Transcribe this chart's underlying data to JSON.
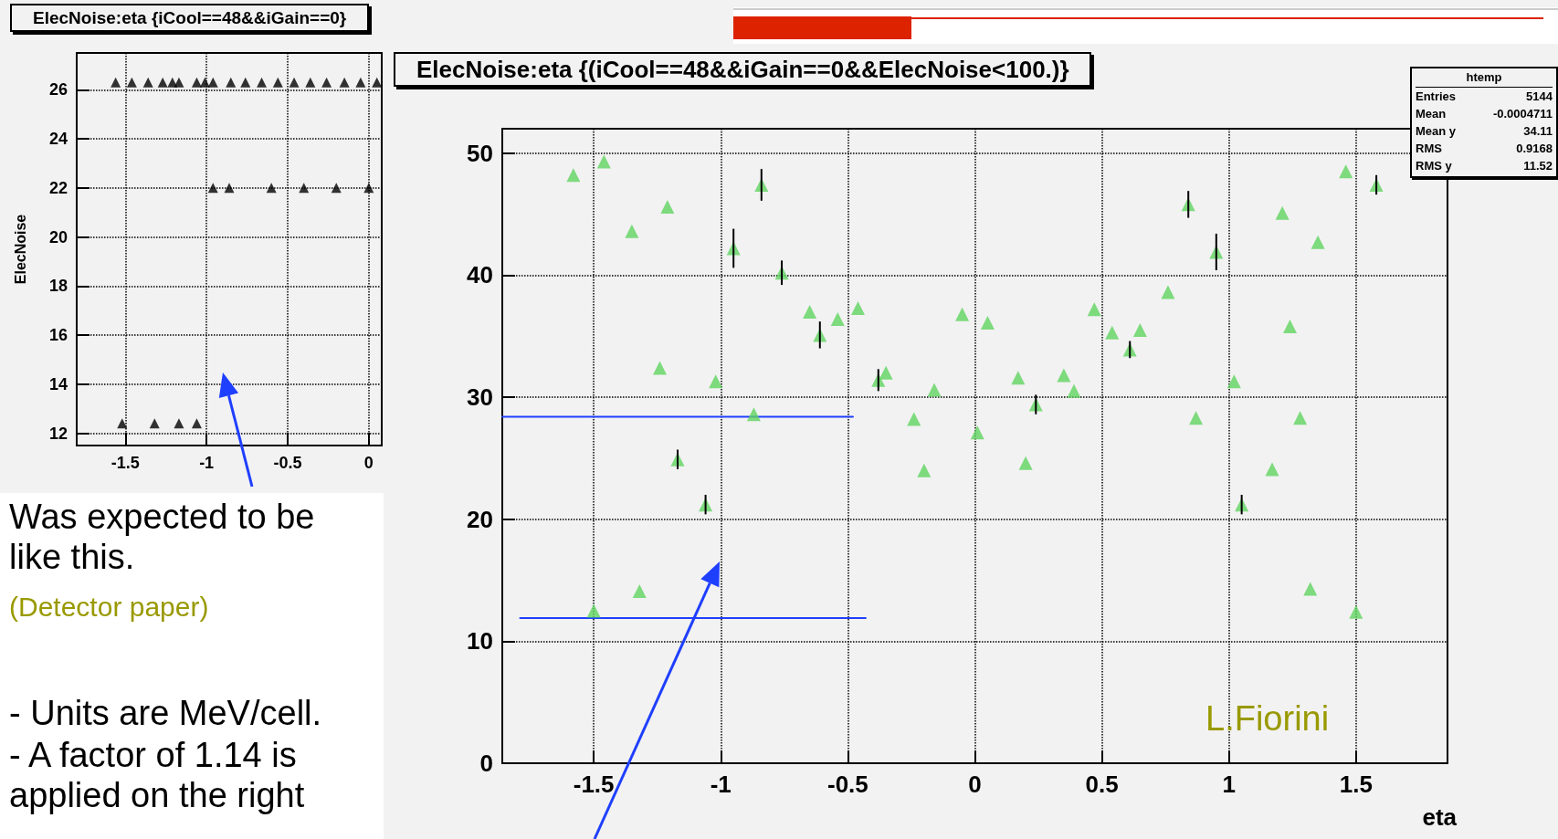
{
  "chart_data": [
    {
      "type": "scatter",
      "title": "ElecNoise:eta {iCool==48&&iGain==0}",
      "ylabel": "ElecNoise",
      "color": "#000000",
      "marker": "triangle",
      "x": [
        -1.56,
        -1.46,
        -1.36,
        -1.27,
        -1.21,
        -1.17,
        -1.06,
        -1.01,
        -0.96,
        -0.85,
        -0.76,
        -0.66,
        -0.56,
        -0.46,
        -0.36,
        -0.26,
        -0.15,
        -0.05,
        0.05,
        -0.96,
        -0.86,
        -0.6,
        -0.4,
        -0.2,
        0.0,
        -1.52,
        -1.32,
        -1.17,
        -1.06
      ],
      "values": [
        26.3,
        26.3,
        26.3,
        26.3,
        26.3,
        26.3,
        26.3,
        26.3,
        26.3,
        26.3,
        26.3,
        26.3,
        26.3,
        26.3,
        26.3,
        26.3,
        26.3,
        26.3,
        26.3,
        22,
        22,
        22,
        22,
        22,
        22,
        12.4,
        12.4,
        12.4,
        12.4
      ],
      "xlim": [
        -1.8,
        0.08
      ],
      "ylim": [
        11.5,
        27.5
      ],
      "xticks": [
        -1.5,
        -1,
        -0.5,
        0
      ],
      "yticks": [
        12,
        14,
        16,
        18,
        20,
        22,
        24,
        26
      ],
      "grid": true,
      "annotations": [
        "Was expected to be like this.",
        "(Detector paper)",
        "- Units are MeV/cell.",
        "- A factor of 1.14 is applied on the right"
      ]
    },
    {
      "type": "scatter",
      "title": "ElecNoise:eta {(iCool==48&&iGain==0&&ElecNoise<100.)}",
      "xlabel": "eta",
      "marker": "triangle",
      "series": [
        {
          "color": "#5fd35f",
          "x": [
            -1.58,
            -1.5,
            -1.46,
            -1.35,
            -1.32,
            -1.24,
            -1.21,
            -1.17,
            -1.06,
            -1.02,
            -0.95,
            -0.87,
            -0.84,
            -0.76,
            -0.65,
            -0.61,
            -0.54,
            -0.46,
            -0.38,
            -0.35,
            -0.24,
            -0.2,
            -0.16,
            -0.05,
            0.01,
            0.05,
            0.17,
            0.2,
            0.24,
            0.35,
            0.39,
            0.47,
            0.54,
            0.61,
            0.65,
            0.76,
            0.84,
            0.87,
            0.95,
            1.02,
            1.05,
            1.17,
            1.21,
            1.24,
            1.28,
            1.32,
            1.35,
            1.46,
            1.5,
            1.58
          ],
          "values": [
            48.2,
            12.5,
            49.3,
            43.6,
            14.1,
            32.4,
            45.6,
            24.9,
            21.2,
            31.3,
            42.2,
            28.6,
            47.4,
            40.2,
            37.0,
            35.1,
            36.4,
            37.3,
            31.4,
            32.0,
            28.2,
            24.0,
            30.6,
            36.8,
            27.1,
            36.1,
            31.6,
            24.6,
            29.4,
            31.8,
            30.5,
            37.2,
            35.3,
            33.9,
            35.5,
            38.6,
            45.8,
            28.3,
            41.9,
            31.3,
            21.2,
            24.1,
            45.1,
            35.8,
            28.3,
            14.3,
            42.7,
            48.5,
            12.4,
            47.4
          ],
          "errors": [
            null,
            null,
            null,
            null,
            null,
            null,
            null,
            0.8,
            0.8,
            null,
            1.6,
            null,
            1.3,
            1.0,
            null,
            1.1,
            null,
            null,
            0.9,
            null,
            null,
            null,
            null,
            null,
            null,
            null,
            null,
            null,
            0.8,
            null,
            null,
            null,
            null,
            0.7,
            null,
            null,
            1.1,
            null,
            1.5,
            null,
            0.8,
            null,
            null,
            null,
            null,
            null,
            null,
            null,
            null,
            0.8
          ]
        },
        {
          "type": "line",
          "color": "#1f3fff",
          "marker": "none",
          "x": [
            -1.86,
            -0.48
          ],
          "values": [
            28.4,
            28.4
          ]
        },
        {
          "type": "line",
          "color": "#1f3fff",
          "marker": "none",
          "x": [
            -1.79,
            -0.43
          ],
          "values": [
            11.9,
            11.9
          ]
        }
      ],
      "xlim": [
        -1.86,
        1.86
      ],
      "ylim": [
        0,
        52
      ],
      "xticks": [
        -1.5,
        -1,
        -0.5,
        0,
        0.5,
        1,
        1.5
      ],
      "yticks": [
        0,
        10,
        20,
        30,
        40,
        50
      ],
      "grid": true,
      "annotations": [
        "htemp",
        "Entries 5144",
        "Mean -0.0004711",
        "Mean y 34.11",
        "RMS 0.9168",
        "RMS y 11.52",
        "L.Fiorini"
      ]
    }
  ]
}
